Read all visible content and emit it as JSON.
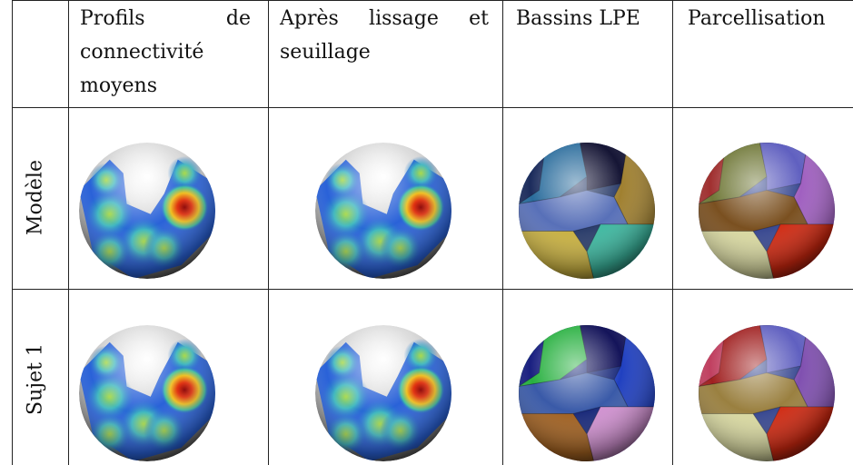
{
  "table": {
    "header": [
      "Profils de connectivité moyens",
      "Après lissage et seuillage",
      "Bassins LPE",
      "Parcellisation"
    ],
    "rows": [
      "Modèle",
      "Sujet 1"
    ]
  }
}
